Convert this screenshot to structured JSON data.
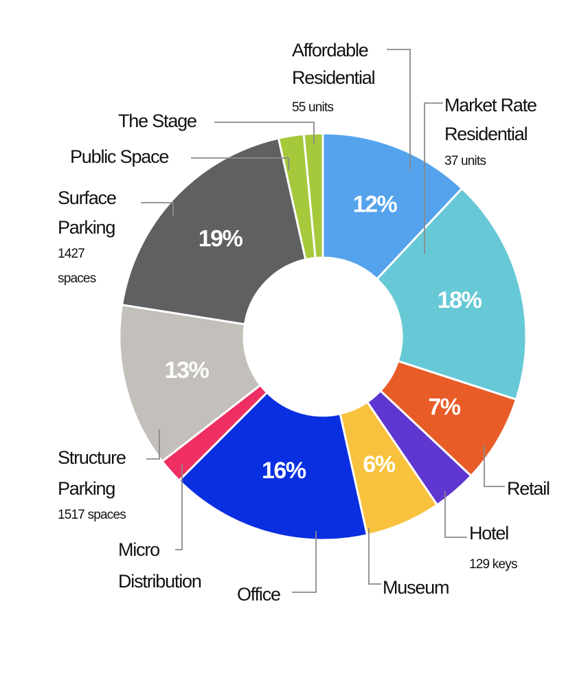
{
  "chart_data": {
    "type": "donut",
    "categories": [
      "Affordable Residential",
      "Market Rate Residential",
      "Retail",
      "Hotel",
      "Museum",
      "Office",
      "Micro Distribution",
      "Structure Parking",
      "Surface Parking",
      "Public Space",
      "The Stage"
    ],
    "values": [
      12,
      18,
      7,
      3.5,
      6,
      16,
      2,
      13,
      19,
      2,
      1.5
    ],
    "value_labels": [
      "12%",
      "18%",
      "7%",
      null,
      "6%",
      "16%",
      null,
      "13%",
      "19%",
      null,
      null
    ],
    "notes": [
      "55 units",
      "37 units",
      null,
      "129 keys",
      null,
      null,
      null,
      "1517 spaces",
      "1427 spaces",
      null,
      null
    ],
    "colors": [
      "#55a3ec",
      "#67c9d6",
      "#e85c28",
      "#5e36d0",
      "#f8c23e",
      "#0a2fe0",
      "#ef2f62",
      "#c3bfba",
      "#5f6062",
      "#a5c93a",
      "#a5c93a"
    ]
  }
}
